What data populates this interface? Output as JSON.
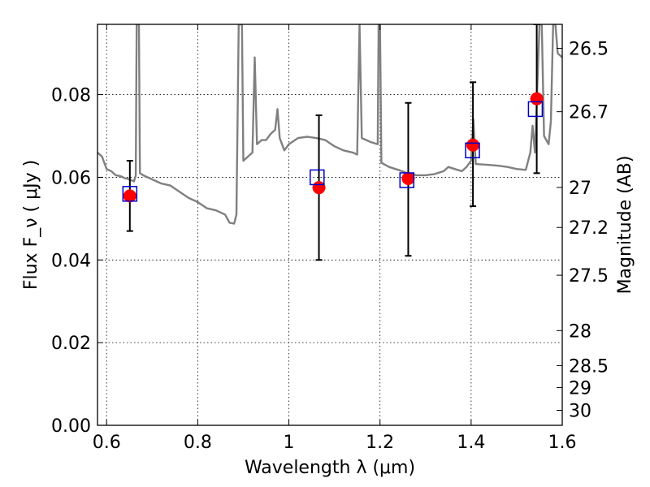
{
  "chart_data": {
    "type": "scatter",
    "title": "",
    "xlabel": "Wavelength  λ (μm)",
    "ylabel": "Flux  F_ν  ( μJy )",
    "ylabel_right": "Magnitude (AB)",
    "xlim": [
      0.58,
      1.6
    ],
    "ylim": [
      0.0,
      0.097
    ],
    "grid": true,
    "x_ticks": [
      {
        "value": 0.6,
        "label": "0.6"
      },
      {
        "value": 0.8,
        "label": "0.8"
      },
      {
        "value": 1.0,
        "label": "1"
      },
      {
        "value": 1.2,
        "label": "1.2"
      },
      {
        "value": 1.4,
        "label": "1.4"
      },
      {
        "value": 1.6,
        "label": "1.6"
      }
    ],
    "y_ticks": [
      {
        "value": 0.0,
        "label": "0.00"
      },
      {
        "value": 0.02,
        "label": "0.02"
      },
      {
        "value": 0.04,
        "label": "0.04"
      },
      {
        "value": 0.06,
        "label": "0.06"
      },
      {
        "value": 0.08,
        "label": "0.08"
      }
    ],
    "y_right_ticks": [
      {
        "value": 26.5,
        "label": "26.5"
      },
      {
        "value": 26.7,
        "label": "26.7"
      },
      {
        "value": 27.0,
        "label": "27"
      },
      {
        "value": 27.2,
        "label": "27.2"
      },
      {
        "value": 27.5,
        "label": "27.5"
      },
      {
        "value": 28.0,
        "label": "28"
      },
      {
        "value": 28.5,
        "label": "28.5"
      },
      {
        "value": 29.0,
        "label": "29"
      },
      {
        "value": 30.0,
        "label": "30"
      }
    ],
    "model_spectrum": {
      "color": "#808080",
      "points": [
        [
          0.58,
          0.066
        ],
        [
          0.59,
          0.065
        ],
        [
          0.6,
          0.062
        ],
        [
          0.61,
          0.0615
        ],
        [
          0.62,
          0.0605
        ],
        [
          0.63,
          0.0603
        ],
        [
          0.64,
          0.0598
        ],
        [
          0.65,
          0.0595
        ],
        [
          0.66,
          0.059
        ],
        [
          0.664,
          0.0605
        ],
        [
          0.666,
          0.097
        ],
        [
          0.671,
          0.097
        ],
        [
          0.673,
          0.061
        ],
        [
          0.68,
          0.0605
        ],
        [
          0.7,
          0.0595
        ],
        [
          0.72,
          0.0585
        ],
        [
          0.74,
          0.058
        ],
        [
          0.76,
          0.0565
        ],
        [
          0.78,
          0.055
        ],
        [
          0.8,
          0.054
        ],
        [
          0.82,
          0.0525
        ],
        [
          0.84,
          0.052
        ],
        [
          0.86,
          0.051
        ],
        [
          0.87,
          0.049
        ],
        [
          0.88,
          0.0488
        ],
        [
          0.885,
          0.051
        ],
        [
          0.89,
          0.097
        ],
        [
          0.897,
          0.097
        ],
        [
          0.9,
          0.064
        ],
        [
          0.91,
          0.065
        ],
        [
          0.92,
          0.066
        ],
        [
          0.925,
          0.089
        ],
        [
          0.93,
          0.068
        ],
        [
          0.94,
          0.069
        ],
        [
          0.95,
          0.069
        ],
        [
          0.96,
          0.0705
        ],
        [
          0.97,
          0.0715
        ],
        [
          0.975,
          0.0765
        ],
        [
          0.98,
          0.0695
        ],
        [
          0.99,
          0.0665
        ],
        [
          1.0,
          0.068
        ],
        [
          1.02,
          0.0695
        ],
        [
          1.04,
          0.0698
        ],
        [
          1.06,
          0.0695
        ],
        [
          1.08,
          0.069
        ],
        [
          1.1,
          0.0675
        ],
        [
          1.12,
          0.0665
        ],
        [
          1.14,
          0.066
        ],
        [
          1.15,
          0.0655
        ],
        [
          1.155,
          0.097
        ],
        [
          1.16,
          0.0695
        ],
        [
          1.18,
          0.0685
        ],
        [
          1.195,
          0.068
        ],
        [
          1.197,
          0.097
        ],
        [
          1.2,
          0.097
        ],
        [
          1.203,
          0.0635
        ],
        [
          1.22,
          0.0625
        ],
        [
          1.24,
          0.0618
        ],
        [
          1.26,
          0.061
        ],
        [
          1.28,
          0.0605
        ],
        [
          1.3,
          0.0605
        ],
        [
          1.32,
          0.0608
        ],
        [
          1.34,
          0.0615
        ],
        [
          1.35,
          0.0625
        ],
        [
          1.37,
          0.0618
        ],
        [
          1.38,
          0.0615
        ],
        [
          1.39,
          0.0625
        ],
        [
          1.4,
          0.064
        ],
        [
          1.405,
          0.074
        ],
        [
          1.41,
          0.0632
        ],
        [
          1.44,
          0.063
        ],
        [
          1.46,
          0.0628
        ],
        [
          1.48,
          0.0625
        ],
        [
          1.5,
          0.062
        ],
        [
          1.52,
          0.0618
        ],
        [
          1.53,
          0.066
        ],
        [
          1.535,
          0.0725
        ],
        [
          1.54,
          0.066
        ],
        [
          1.55,
          0.097
        ],
        [
          1.555,
          0.097
        ],
        [
          1.56,
          0.07
        ],
        [
          1.57,
          0.068
        ],
        [
          1.575,
          0.0735
        ],
        [
          1.58,
          0.097
        ],
        [
          1.585,
          0.097
        ],
        [
          1.59,
          0.09
        ],
        [
          1.6,
          0.089
        ]
      ]
    },
    "series": [
      {
        "marker": "circle",
        "color": "#ff0000",
        "points": [
          {
            "x": 0.651,
            "y": 0.0555,
            "err_low": 0.047,
            "err_high": 0.064
          },
          {
            "x": 1.066,
            "y": 0.0575,
            "err_low": 0.04,
            "err_high": 0.075
          },
          {
            "x": 1.262,
            "y": 0.0597,
            "err_low": 0.041,
            "err_high": 0.078
          },
          {
            "x": 1.404,
            "y": 0.0678,
            "err_low": 0.053,
            "err_high": 0.083
          },
          {
            "x": 1.544,
            "y": 0.079,
            "err_low": 0.061,
            "err_high": 0.097
          }
        ]
      },
      {
        "marker": "square-open",
        "color": "#0000cc",
        "points": [
          {
            "x": 0.651,
            "y": 0.056
          },
          {
            "x": 1.062,
            "y": 0.06
          },
          {
            "x": 1.259,
            "y": 0.0593
          },
          {
            "x": 1.403,
            "y": 0.0665
          },
          {
            "x": 1.541,
            "y": 0.0765
          }
        ]
      }
    ]
  }
}
